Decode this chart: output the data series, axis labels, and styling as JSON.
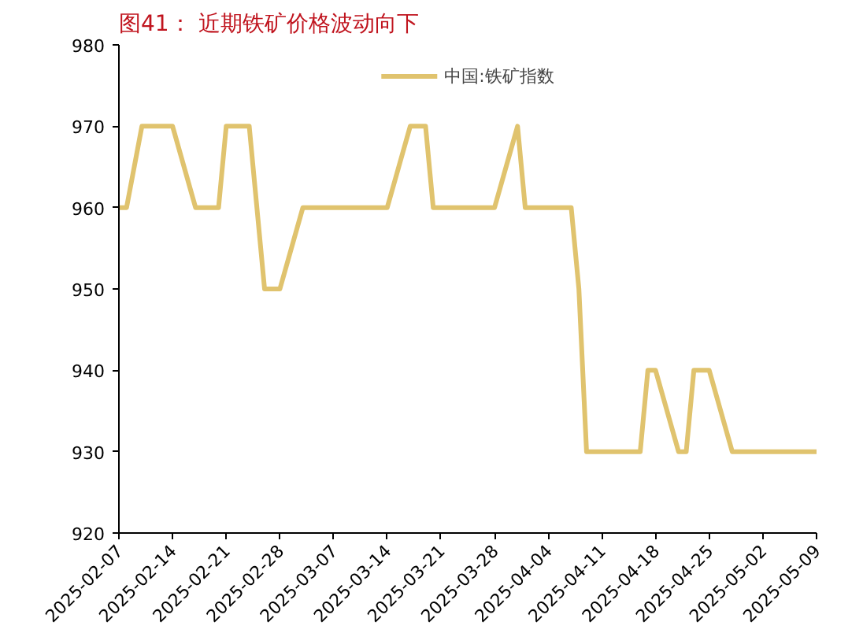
{
  "chart_data": {
    "type": "line",
    "title": "图41：  近期铁矿价格波动向下",
    "x": [
      "2025-02-07",
      "2025-02-08",
      "2025-02-10",
      "2025-02-14",
      "2025-02-17",
      "2025-02-20",
      "2025-02-21",
      "2025-02-24",
      "2025-02-26",
      "2025-02-28",
      "2025-03-03",
      "2025-03-14",
      "2025-03-17",
      "2025-03-19",
      "2025-03-20",
      "2025-03-28",
      "2025-03-31",
      "2025-04-01",
      "2025-04-07",
      "2025-04-08",
      "2025-04-09",
      "2025-04-16",
      "2025-04-17",
      "2025-04-18",
      "2025-04-21",
      "2025-04-22",
      "2025-04-23",
      "2025-04-25",
      "2025-04-28",
      "2025-05-09"
    ],
    "series": [
      {
        "name": "中国:铁矿指数",
        "color": "#e0c36e",
        "values": [
          960,
          960,
          970,
          970,
          960,
          960,
          970,
          970,
          950,
          950,
          960,
          960,
          970,
          970,
          960,
          960,
          970,
          960,
          960,
          950,
          930,
          930,
          940,
          940,
          930,
          930,
          940,
          940,
          930,
          930
        ]
      }
    ],
    "xlim": [
      "2025-02-07",
      "2025-05-09"
    ],
    "xticks": [
      "2025-02-07",
      "2025-02-14",
      "2025-02-21",
      "2025-02-28",
      "2025-03-07",
      "2025-03-14",
      "2025-03-21",
      "2025-03-28",
      "2025-04-04",
      "2025-04-11",
      "2025-04-18",
      "2025-04-25",
      "2025-05-02",
      "2025-05-09"
    ],
    "ylim": [
      920,
      980
    ],
    "yticks": [
      920,
      930,
      940,
      950,
      960,
      970,
      980
    ],
    "grid": false,
    "legend": "top",
    "marker": "none",
    "line_style": "solid"
  }
}
